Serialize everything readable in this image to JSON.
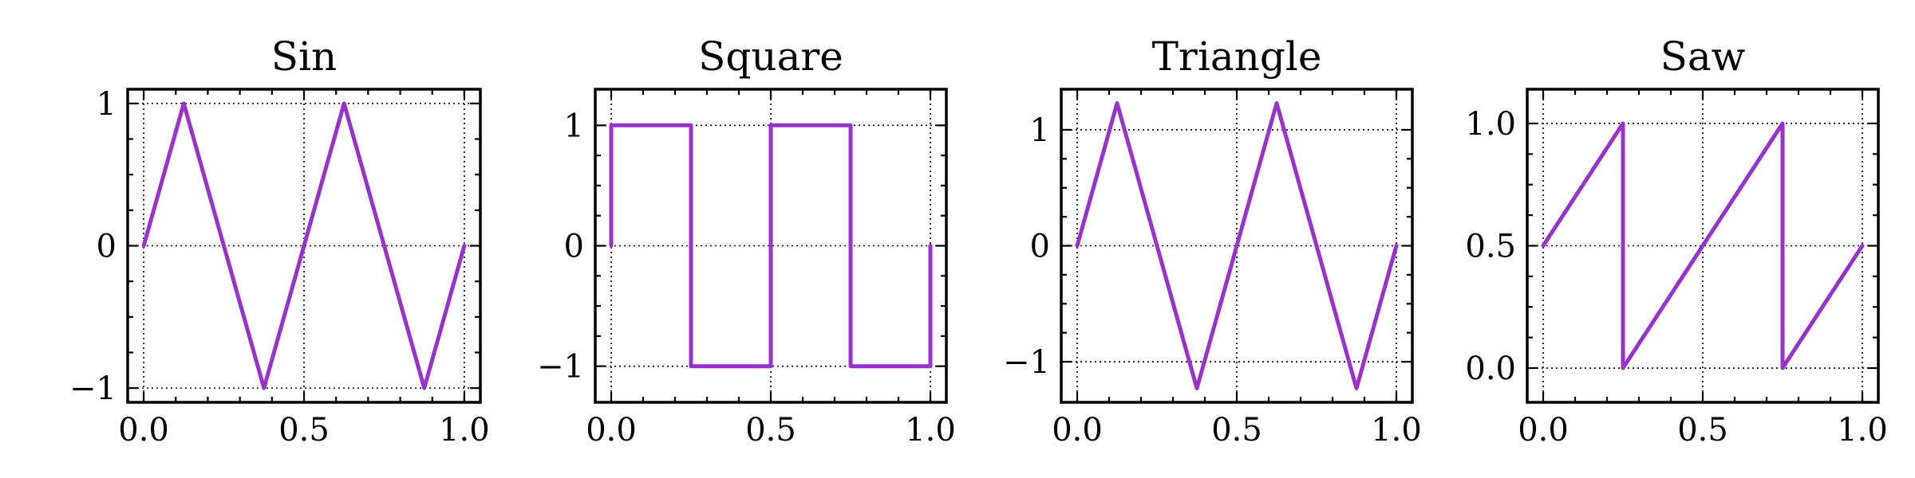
{
  "chart_data": [
    {
      "type": "line",
      "title": "Sin",
      "xlabel": "",
      "ylabel": "",
      "xlim": [
        -0.05,
        1.05
      ],
      "ylim": [
        -1.1,
        1.1
      ],
      "xticks": [
        0.0,
        0.5,
        1.0
      ],
      "xtick_labels": [
        "0.0",
        "0.5",
        "1.0"
      ],
      "yticks": [
        -1,
        0,
        1
      ],
      "ytick_labels": [
        "−1",
        "0",
        "1"
      ],
      "grid": true,
      "series": [
        {
          "color": "#9932cc",
          "x": [
            0,
            0.125,
            0.25,
            0.375,
            0.5,
            0.625,
            0.75,
            0.875,
            1.0
          ],
          "y": [
            0,
            1,
            0,
            -1,
            0,
            1,
            0,
            -1,
            0
          ]
        }
      ]
    },
    {
      "type": "line",
      "title": "Square",
      "xlabel": "",
      "ylabel": "",
      "xlim": [
        -0.05,
        1.05
      ],
      "ylim": [
        -1.3,
        1.3
      ],
      "xticks": [
        0.0,
        0.5,
        1.0
      ],
      "xtick_labels": [
        "0.0",
        "0.5",
        "1.0"
      ],
      "yticks": [
        -1,
        0,
        1
      ],
      "ytick_labels": [
        "−1",
        "0",
        "1"
      ],
      "grid": true,
      "series": [
        {
          "color": "#9932cc",
          "x": [
            0,
            0,
            0.25,
            0.25,
            0.5,
            0.5,
            0.75,
            0.75,
            1.0,
            1.0
          ],
          "y": [
            0,
            1,
            1,
            -1,
            -1,
            1,
            1,
            -1,
            -1,
            0
          ]
        }
      ]
    },
    {
      "type": "line",
      "title": "Triangle",
      "xlabel": "",
      "ylabel": "",
      "xlim": [
        -0.05,
        1.05
      ],
      "ylim": [
        -1.35,
        1.35
      ],
      "xticks": [
        0.0,
        0.5,
        1.0
      ],
      "xtick_labels": [
        "0.0",
        "0.5",
        "1.0"
      ],
      "yticks": [
        -1,
        0,
        1
      ],
      "ytick_labels": [
        "−1",
        "0",
        "1"
      ],
      "grid": true,
      "series": [
        {
          "color": "#9932cc",
          "x": [
            0,
            0.125,
            0.375,
            0.625,
            0.875,
            1.0
          ],
          "y": [
            0,
            1.23,
            -1.23,
            1.23,
            -1.23,
            0
          ]
        }
      ]
    },
    {
      "type": "line",
      "title": "Saw",
      "xlabel": "",
      "ylabel": "",
      "xlim": [
        -0.05,
        1.05
      ],
      "ylim": [
        -0.14,
        1.14
      ],
      "xticks": [
        0.0,
        0.5,
        1.0
      ],
      "xtick_labels": [
        "0.0",
        "0.5",
        "1.0"
      ],
      "yticks": [
        0.0,
        0.5,
        1.0
      ],
      "ytick_labels": [
        "0.0",
        "0.5",
        "1.0"
      ],
      "grid": true,
      "series": [
        {
          "color": "#9932cc",
          "x": [
            0,
            0.25,
            0.25,
            0.75,
            0.75,
            1.0
          ],
          "y": [
            0.5,
            1.0,
            0,
            1.0,
            0,
            0.5
          ]
        }
      ]
    }
  ]
}
